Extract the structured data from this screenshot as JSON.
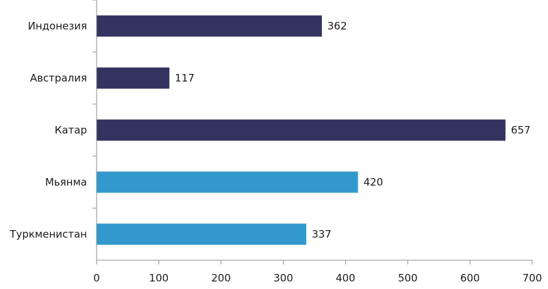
{
  "chart_data": {
    "type": "bar",
    "orientation": "horizontal",
    "categories": [
      "Индонезия",
      "Австралия",
      "Катар",
      "Мьянма",
      "Туркменистан"
    ],
    "values": [
      362,
      117,
      657,
      420,
      337
    ],
    "colors": [
      "#33335f",
      "#33335f",
      "#33335f",
      "#3399cc",
      "#3399cc"
    ],
    "xlim": [
      0,
      700
    ],
    "xticks": [
      0,
      100,
      200,
      300,
      400,
      500,
      600,
      700
    ],
    "grid": false,
    "legend": "none",
    "data_labels": true
  }
}
